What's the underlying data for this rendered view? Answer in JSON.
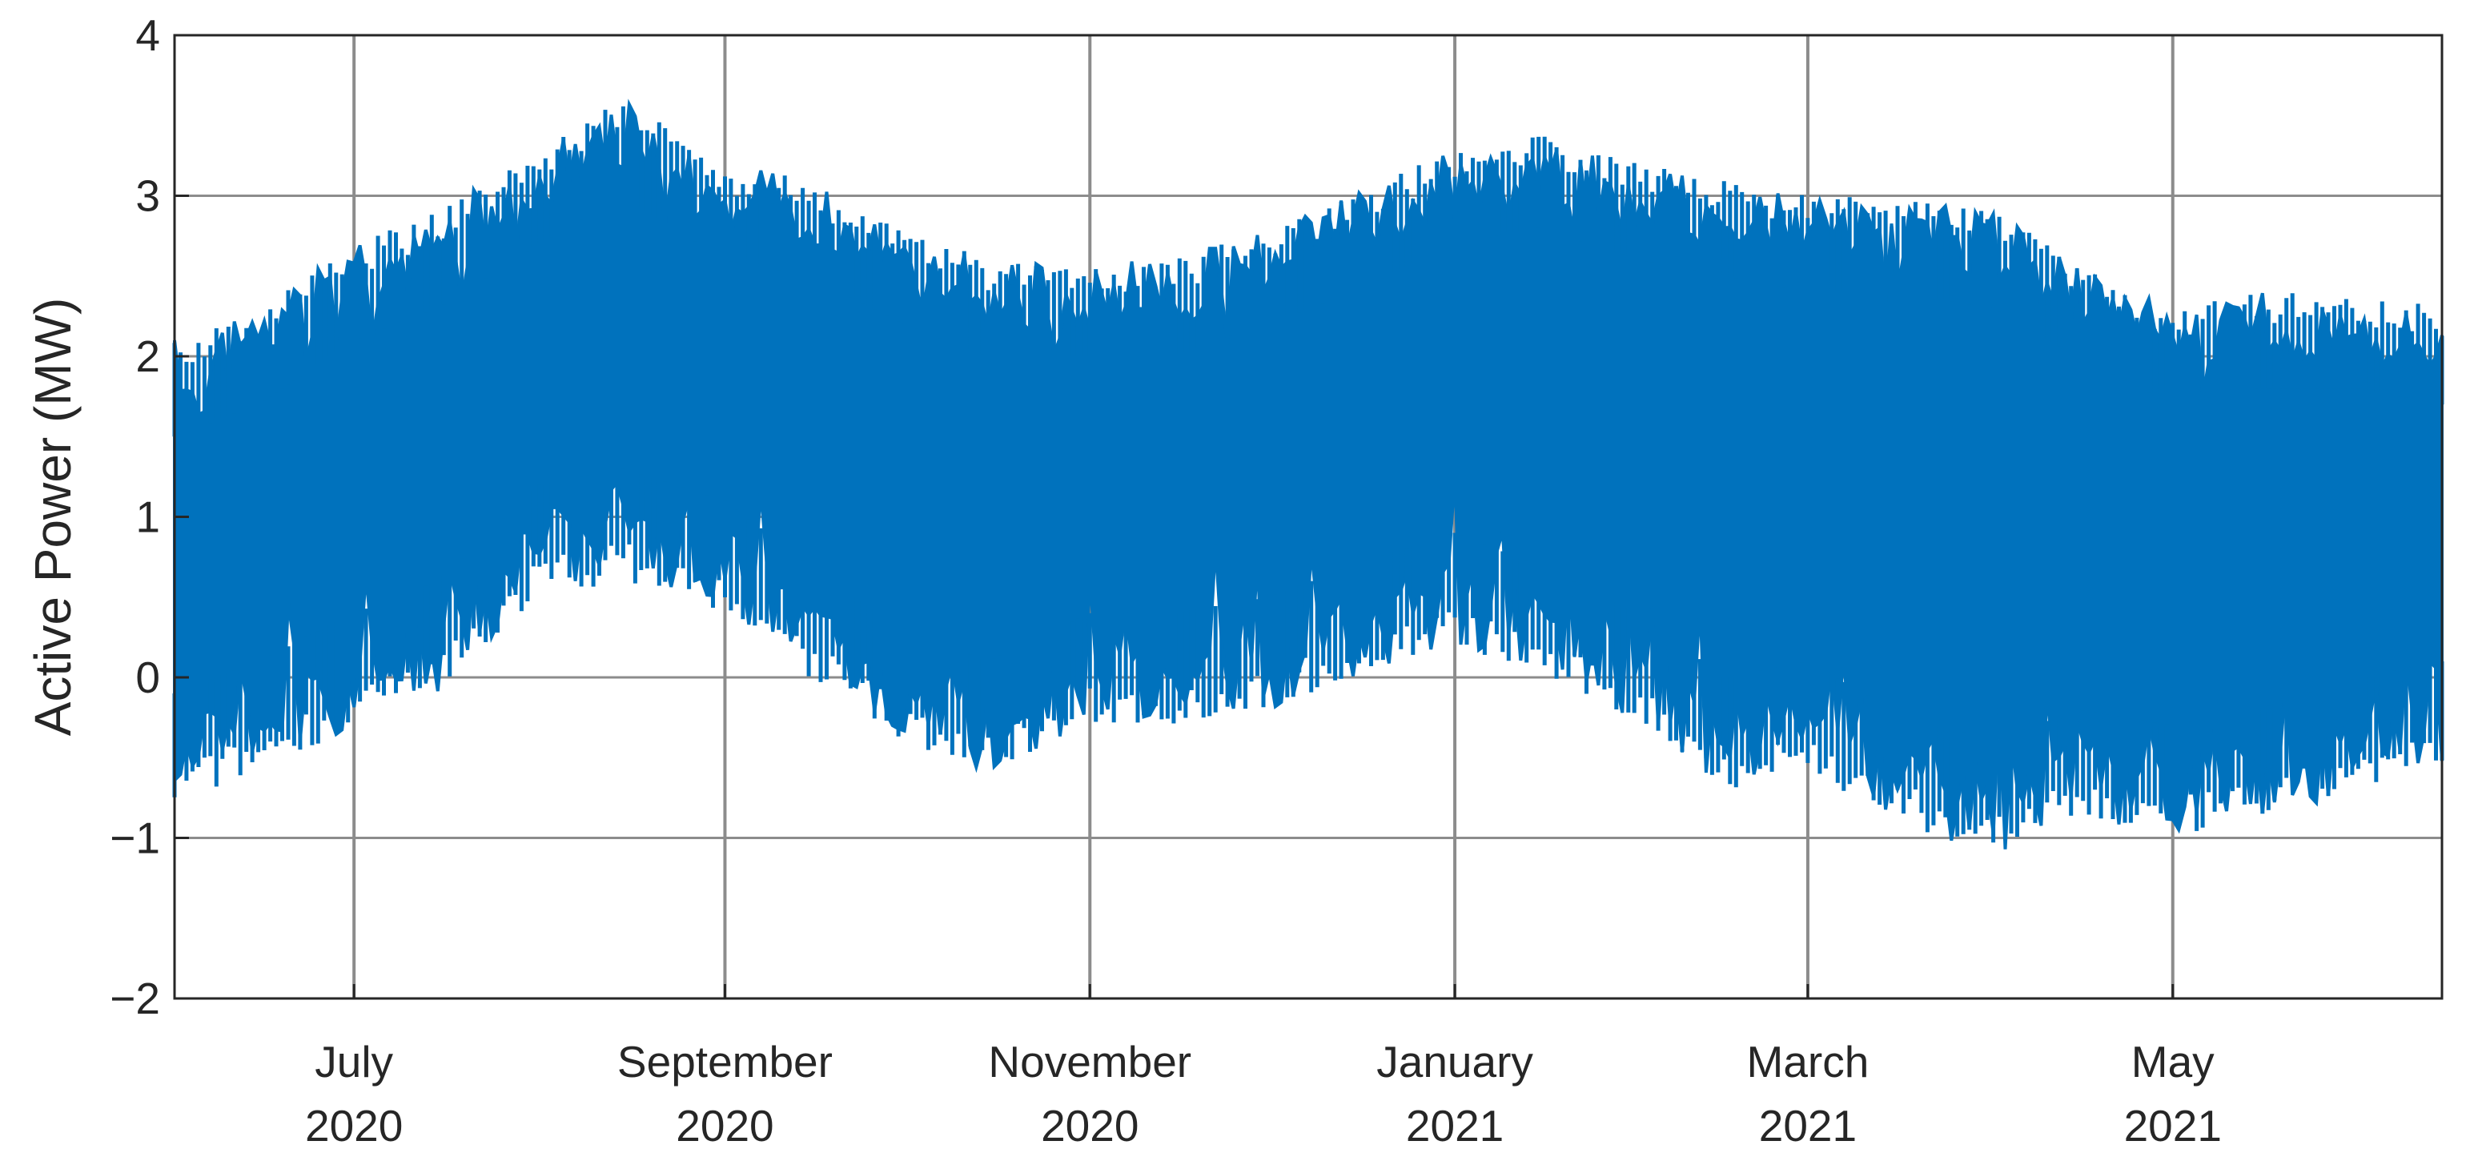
{
  "chart_data": {
    "type": "line",
    "title": "",
    "xlabel": "",
    "ylabel": "Active Power (MW)",
    "xlim": [
      "2020-06-01",
      "2021-06-15"
    ],
    "ylim": [
      -2,
      4
    ],
    "grid": true,
    "y_ticks": [
      -2,
      -1,
      0,
      1,
      2,
      3,
      4
    ],
    "y_tick_labels": [
      "−2",
      "−1",
      "0",
      "1",
      "2",
      "3",
      "4"
    ],
    "x_ticks": [
      {
        "date": "2020-07-01",
        "month": "July",
        "year": "2020"
      },
      {
        "date": "2020-09-01",
        "month": "September",
        "year": "2020"
      },
      {
        "date": "2020-11-01",
        "month": "November",
        "year": "2020"
      },
      {
        "date": "2021-01-01",
        "month": "January",
        "year": "2021"
      },
      {
        "date": "2021-03-01",
        "month": "March",
        "year": "2021"
      },
      {
        "date": "2021-05-01",
        "month": "May",
        "year": "2021"
      }
    ],
    "series_color": "#0072BD",
    "series": [
      {
        "name": "",
        "resolution": "daily min/max envelope",
        "x": [
          "2020-06-01",
          "2020-06-15",
          "2020-07-01",
          "2020-07-15",
          "2020-08-01",
          "2020-08-15",
          "2020-09-01",
          "2020-09-15",
          "2020-10-01",
          "2020-10-15",
          "2020-11-01",
          "2020-11-15",
          "2020-12-01",
          "2020-12-15",
          "2021-01-01",
          "2021-01-15",
          "2021-02-01",
          "2021-02-15",
          "2021-03-01",
          "2021-03-15",
          "2021-04-01",
          "2021-04-15",
          "2021-05-01",
          "2021-05-15",
          "2021-06-01",
          "2021-06-15"
        ],
        "upper": [
          2.1,
          2.3,
          2.7,
          2.9,
          3.3,
          3.6,
          3.2,
          3.1,
          2.8,
          2.6,
          2.6,
          2.6,
          2.8,
          3.0,
          3.3,
          3.4,
          3.2,
          3.1,
          3.0,
          3.0,
          2.9,
          2.6,
          2.3,
          2.4,
          2.4,
          2.3
        ],
        "lower": [
          -0.8,
          -0.6,
          -0.3,
          -0.1,
          0.5,
          0.6,
          0.4,
          0.0,
          -0.4,
          -0.6,
          -0.3,
          -0.3,
          -0.2,
          0.0,
          0.2,
          0.0,
          -0.3,
          -0.7,
          -0.6,
          -0.9,
          -1.1,
          -0.9,
          -1.0,
          -0.9,
          -0.7,
          -0.6
        ]
      }
    ]
  }
}
